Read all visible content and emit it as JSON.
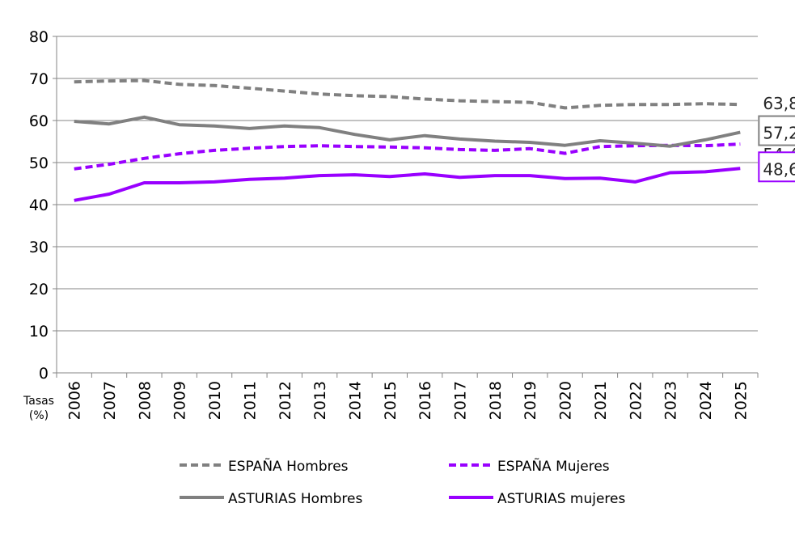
{
  "chart_data": {
    "type": "line",
    "title": "",
    "xlabel": "Tasas (%)",
    "ylabel": "",
    "ylim": [
      0,
      80
    ],
    "yticks": [
      "0",
      "10",
      "20",
      "30",
      "40",
      "50",
      "60",
      "70",
      "80"
    ],
    "grid": true,
    "legend_position": "bottom",
    "categories": [
      "2006",
      "2007",
      "2008",
      "2009",
      "2010",
      "2011",
      "2012",
      "2013",
      "2014",
      "2015",
      "2016",
      "2017",
      "2018",
      "2019",
      "2020",
      "2021",
      "2022",
      "2023",
      "2024",
      "2025"
    ],
    "series": [
      {
        "name": "ESPAÑA Hombres",
        "color": "#808080",
        "dashed": true,
        "end_label": "63,8",
        "end_label_boxed": false,
        "values": [
          69.2,
          69.4,
          69.5,
          68.6,
          68.3,
          67.7,
          67.0,
          66.3,
          65.9,
          65.7,
          65.1,
          64.7,
          64.5,
          64.3,
          63.0,
          63.6,
          63.8,
          63.8,
          64.0,
          63.8
        ]
      },
      {
        "name": "ESPAÑA Mujeres",
        "color": "#9900FF",
        "dashed": true,
        "end_label": "54,4",
        "end_label_boxed": false,
        "values": [
          48.5,
          49.6,
          51.0,
          52.1,
          52.9,
          53.4,
          53.8,
          54.0,
          53.8,
          53.7,
          53.5,
          53.1,
          52.9,
          53.3,
          52.2,
          53.8,
          54.0,
          54.1,
          54.0,
          54.4
        ]
      },
      {
        "name": "ASTURIAS Hombres",
        "color": "#808080",
        "dashed": false,
        "end_label": "57,2",
        "end_label_boxed": true,
        "values": [
          59.8,
          59.2,
          60.8,
          59.0,
          58.7,
          58.1,
          58.7,
          58.3,
          56.7,
          55.4,
          56.4,
          55.6,
          55.1,
          54.8,
          54.1,
          55.2,
          54.6,
          53.9,
          55.4,
          57.2
        ]
      },
      {
        "name": "ASTURIAS mujeres",
        "color": "#9900FF",
        "dashed": false,
        "end_label": "48,6",
        "end_label_boxed": true,
        "values": [
          41.0,
          42.5,
          45.2,
          45.2,
          45.4,
          46.0,
          46.3,
          46.9,
          47.1,
          46.7,
          47.3,
          46.5,
          46.9,
          46.9,
          46.2,
          46.3,
          45.4,
          47.6,
          47.8,
          48.6
        ]
      }
    ]
  }
}
